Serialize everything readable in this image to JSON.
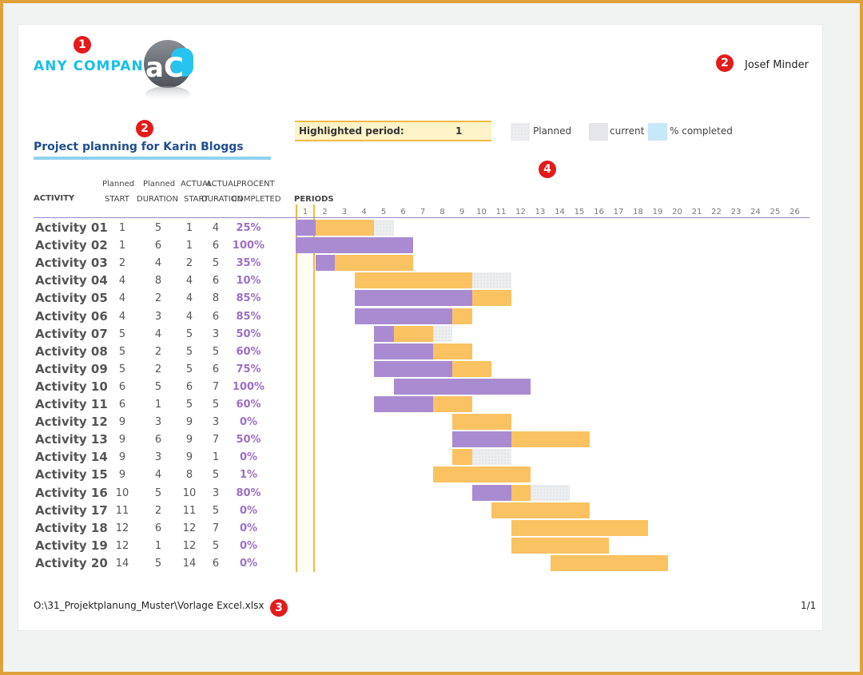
{
  "header": {
    "company_name": "ANY COMPANY",
    "logo_glyph": "aC",
    "owner_name": "Josef Minder"
  },
  "badges": [
    "1",
    "2",
    "2",
    "3",
    "4"
  ],
  "title": "Project planning for Karin Bloggs",
  "highlight": {
    "label": "Highlighted period:",
    "value": 1
  },
  "legend": [
    {
      "label": "Planned",
      "color": "#eceef0"
    },
    {
      "label": "current",
      "color": "#e4e6ea"
    },
    {
      "label": "% completed",
      "color": "#c6e8f8"
    }
  ],
  "columns": {
    "activity": "ACTIVITY",
    "plan_start": [
      "Planned",
      "START"
    ],
    "plan_duration": [
      "Planned",
      "DURATION"
    ],
    "actual_start": [
      "ACTUAL",
      "START"
    ],
    "actual_duration": [
      "ACTUAL",
      "DURATION"
    ],
    "percent": [
      "PROCENT",
      "COMPLETED"
    ],
    "periods": "PERIODS"
  },
  "periods": [
    1,
    2,
    3,
    4,
    5,
    6,
    7,
    8,
    9,
    10,
    11,
    12,
    13,
    14,
    15,
    16,
    17,
    18,
    19,
    20,
    21,
    22,
    23,
    24,
    25,
    26
  ],
  "footer": {
    "path": "O:\\31_Projektplanung_Muster\\Vorlage Excel.xlsx",
    "page": "1/1"
  },
  "colors": {
    "planned": "#eceef0",
    "actual": "#fbc262",
    "complete": "#a98bd1",
    "highlight_border": "#f0b84a",
    "percent_text": "#9b6fc6",
    "title": "#1f4e8c"
  },
  "chart_data": {
    "type": "gantt",
    "x_axis": "PERIODS",
    "highlighted_period": 1,
    "activities": [
      {
        "name": "Activity 01",
        "plan_start": 1,
        "plan_duration": 5,
        "actual_start": 1,
        "actual_duration": 4,
        "percent": "25%"
      },
      {
        "name": "Activity 02",
        "plan_start": 1,
        "plan_duration": 6,
        "actual_start": 1,
        "actual_duration": 6,
        "percent": "100%"
      },
      {
        "name": "Activity 03",
        "plan_start": 2,
        "plan_duration": 4,
        "actual_start": 2,
        "actual_duration": 5,
        "percent": "35%"
      },
      {
        "name": "Activity 04",
        "plan_start": 4,
        "plan_duration": 8,
        "actual_start": 4,
        "actual_duration": 6,
        "percent": "10%"
      },
      {
        "name": "Activity 05",
        "plan_start": 4,
        "plan_duration": 2,
        "actual_start": 4,
        "actual_duration": 8,
        "percent": "85%"
      },
      {
        "name": "Activity 06",
        "plan_start": 4,
        "plan_duration": 3,
        "actual_start": 4,
        "actual_duration": 6,
        "percent": "85%"
      },
      {
        "name": "Activity 07",
        "plan_start": 5,
        "plan_duration": 4,
        "actual_start": 5,
        "actual_duration": 3,
        "percent": "50%"
      },
      {
        "name": "Activity 08",
        "plan_start": 5,
        "plan_duration": 2,
        "actual_start": 5,
        "actual_duration": 5,
        "percent": "60%"
      },
      {
        "name": "Activity 09",
        "plan_start": 5,
        "plan_duration": 2,
        "actual_start": 5,
        "actual_duration": 6,
        "percent": "75%"
      },
      {
        "name": "Activity 10",
        "plan_start": 6,
        "plan_duration": 5,
        "actual_start": 6,
        "actual_duration": 7,
        "percent": "100%"
      },
      {
        "name": "Activity 11",
        "plan_start": 6,
        "plan_duration": 1,
        "actual_start": 5,
        "actual_duration": 5,
        "percent": "60%"
      },
      {
        "name": "Activity 12",
        "plan_start": 9,
        "plan_duration": 3,
        "actual_start": 9,
        "actual_duration": 3,
        "percent": "0%"
      },
      {
        "name": "Activity 13",
        "plan_start": 9,
        "plan_duration": 6,
        "actual_start": 9,
        "actual_duration": 7,
        "percent": "50%"
      },
      {
        "name": "Activity 14",
        "plan_start": 9,
        "plan_duration": 3,
        "actual_start": 9,
        "actual_duration": 1,
        "percent": "0%"
      },
      {
        "name": "Activity 15",
        "plan_start": 9,
        "plan_duration": 4,
        "actual_start": 8,
        "actual_duration": 5,
        "percent": "1%"
      },
      {
        "name": "Activity 16",
        "plan_start": 10,
        "plan_duration": 5,
        "actual_start": 10,
        "actual_duration": 3,
        "percent": "80%"
      },
      {
        "name": "Activity 17",
        "plan_start": 11,
        "plan_duration": 2,
        "actual_start": 11,
        "actual_duration": 5,
        "percent": "0%"
      },
      {
        "name": "Activity 18",
        "plan_start": 12,
        "plan_duration": 6,
        "actual_start": 12,
        "actual_duration": 7,
        "percent": "0%"
      },
      {
        "name": "Activity 19",
        "plan_start": 12,
        "plan_duration": 1,
        "actual_start": 12,
        "actual_duration": 5,
        "percent": "0%"
      },
      {
        "name": "Activity 20",
        "plan_start": 14,
        "plan_duration": 5,
        "actual_start": 14,
        "actual_duration": 6,
        "percent": "0%"
      }
    ]
  }
}
